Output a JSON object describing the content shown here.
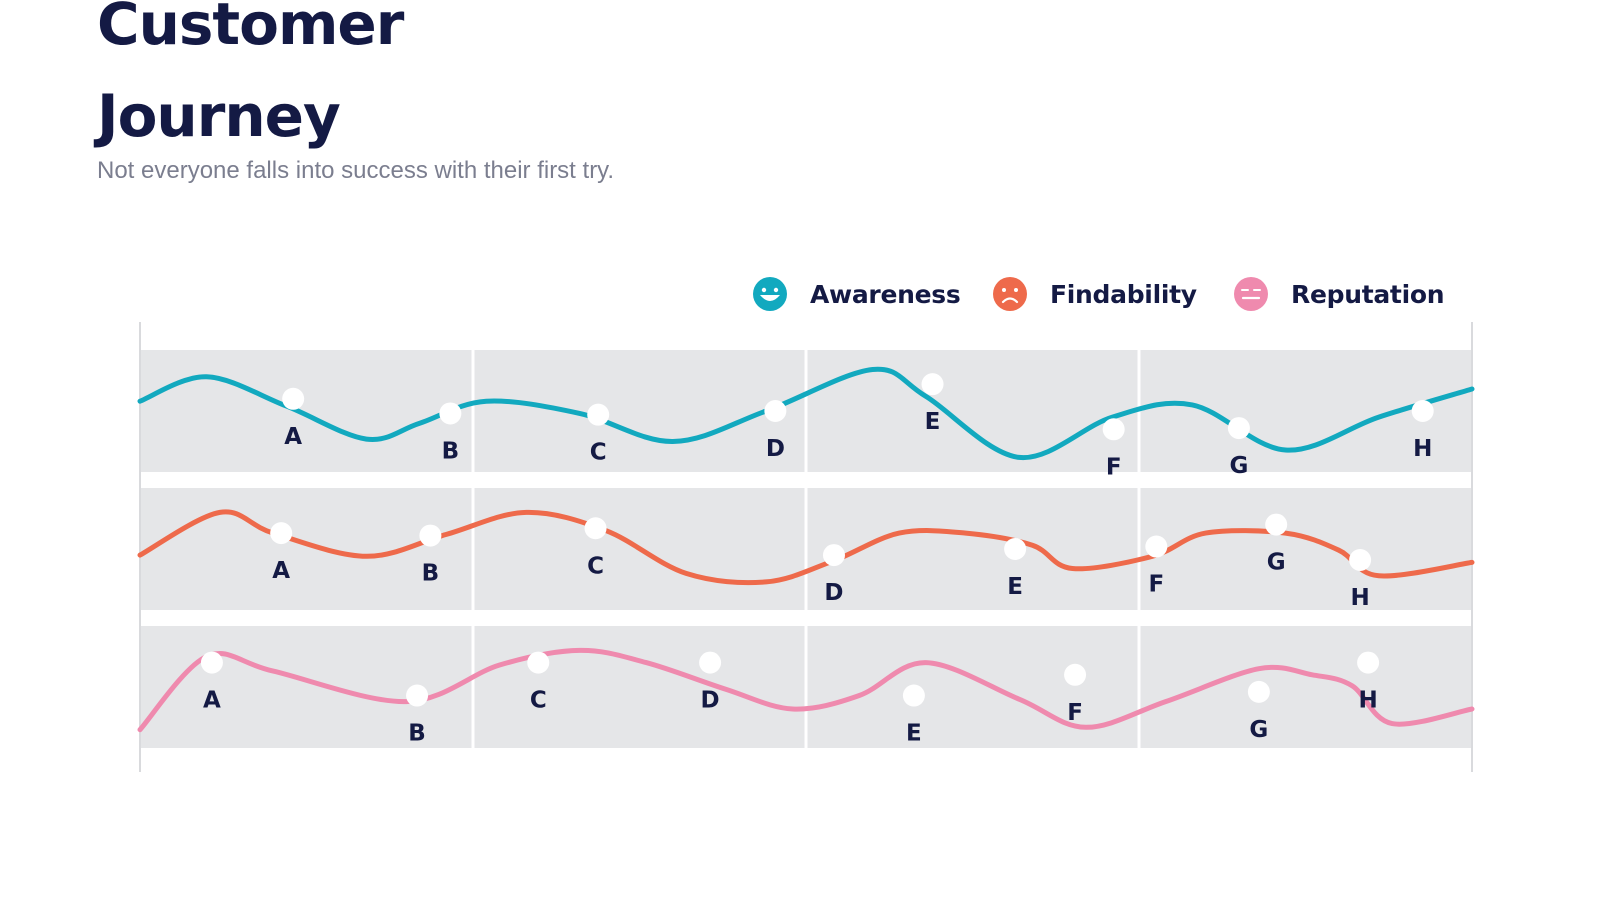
{
  "header": {
    "title_line1": "Customer",
    "title_line2": "Journey",
    "subtitle": "Not everyone falls into success with their first try."
  },
  "legend": [
    {
      "name": "Awareness",
      "icon": "smile-face-icon",
      "color": "#12a9bf"
    },
    {
      "name": "Findability",
      "icon": "sad-face-icon",
      "color": "#ee6a4b"
    },
    {
      "name": "Reputation",
      "icon": "neutral-face-icon",
      "color": "#ef8aae"
    }
  ],
  "chart_data": {
    "type": "line",
    "x_range": [
      0,
      100
    ],
    "y_range": [
      0,
      100
    ],
    "grid": true,
    "legend_position": "top-right",
    "series": [
      {
        "name": "Awareness",
        "color": "#12a9bf",
        "curve": [
          [
            0,
            58
          ],
          [
            5,
            78
          ],
          [
            11,
            54
          ],
          [
            17,
            27
          ],
          [
            21,
            40
          ],
          [
            26,
            58
          ],
          [
            33,
            48
          ],
          [
            40,
            25
          ],
          [
            47,
            50
          ],
          [
            55,
            84
          ],
          [
            59,
            62
          ],
          [
            66,
            12
          ],
          [
            73,
            45
          ],
          [
            79,
            55
          ],
          [
            86,
            18
          ],
          [
            93,
            45
          ],
          [
            100,
            68
          ]
        ],
        "points": [
          {
            "label": "A",
            "x": 11.5,
            "y": 60
          },
          {
            "label": "B",
            "x": 23.3,
            "y": 48
          },
          {
            "label": "C",
            "x": 34.4,
            "y": 47
          },
          {
            "label": "D",
            "x": 47.7,
            "y": 50
          },
          {
            "label": "E",
            "x": 59.5,
            "y": 72
          },
          {
            "label": "F",
            "x": 73.1,
            "y": 35
          },
          {
            "label": "G",
            "x": 82.5,
            "y": 36
          },
          {
            "label": "H",
            "x": 96.3,
            "y": 50
          }
        ]
      },
      {
        "name": "Findability",
        "color": "#ee6a4b",
        "curve": [
          [
            0,
            45
          ],
          [
            6,
            80
          ],
          [
            10,
            63
          ],
          [
            17,
            44
          ],
          [
            23,
            62
          ],
          [
            29,
            80
          ],
          [
            35,
            65
          ],
          [
            41,
            30
          ],
          [
            47,
            23
          ],
          [
            52,
            40
          ],
          [
            57,
            63
          ],
          [
            62,
            63
          ],
          [
            67,
            53
          ],
          [
            70,
            34
          ],
          [
            76,
            44
          ],
          [
            80,
            63
          ],
          [
            86,
            63
          ],
          [
            90,
            49
          ],
          [
            93,
            28
          ],
          [
            100,
            39
          ]
        ],
        "points": [
          {
            "label": "A",
            "x": 10.6,
            "y": 63
          },
          {
            "label": "B",
            "x": 21.8,
            "y": 61
          },
          {
            "label": "C",
            "x": 34.2,
            "y": 67
          },
          {
            "label": "D",
            "x": 52.1,
            "y": 45
          },
          {
            "label": "E",
            "x": 65.7,
            "y": 50
          },
          {
            "label": "F",
            "x": 76.3,
            "y": 52
          },
          {
            "label": "G",
            "x": 85.3,
            "y": 70
          },
          {
            "label": "H",
            "x": 91.6,
            "y": 41
          }
        ]
      },
      {
        "name": "Reputation",
        "color": "#ef8aae",
        "curve": [
          [
            0,
            15
          ],
          [
            5,
            75
          ],
          [
            10,
            63
          ],
          [
            20,
            38
          ],
          [
            27,
            68
          ],
          [
            33,
            80
          ],
          [
            38,
            70
          ],
          [
            44,
            48
          ],
          [
            49,
            32
          ],
          [
            54,
            43
          ],
          [
            59,
            70
          ],
          [
            66,
            40
          ],
          [
            71,
            17
          ],
          [
            77,
            38
          ],
          [
            84,
            65
          ],
          [
            88,
            60
          ],
          [
            91,
            51
          ],
          [
            94,
            20
          ],
          [
            100,
            32
          ]
        ],
        "points": [
          {
            "label": "A",
            "x": 5.4,
            "y": 70
          },
          {
            "label": "B",
            "x": 20.8,
            "y": 43
          },
          {
            "label": "C",
            "x": 29.9,
            "y": 70
          },
          {
            "label": "D",
            "x": 42.8,
            "y": 70
          },
          {
            "label": "E",
            "x": 58.1,
            "y": 43
          },
          {
            "label": "F",
            "x": 70.2,
            "y": 60
          },
          {
            "label": "G",
            "x": 84.0,
            "y": 46
          },
          {
            "label": "H",
            "x": 92.2,
            "y": 70
          }
        ]
      }
    ]
  }
}
